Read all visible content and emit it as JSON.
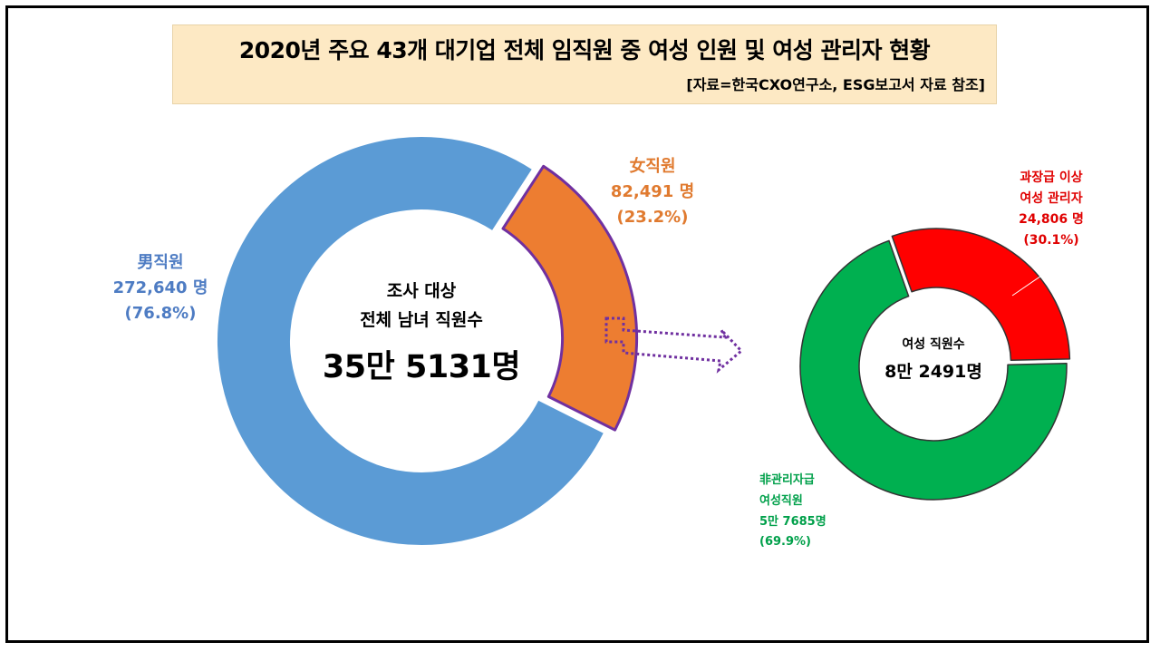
{
  "header": {
    "title": "2020년 주요 43개 대기업 전체 임직원 중 여성 인원 및 여성 관리자 현황",
    "source": "[자료=한국CXO연구소, ESG보고서 자료 참조]"
  },
  "main_donut": {
    "center_line1": "조사 대상",
    "center_line2": "전체 남녀 직원수",
    "center_total": "35만 5131명",
    "male": {
      "name": "男직원",
      "count": "272,640 명",
      "percent": "(76.8%)"
    },
    "female": {
      "name": "女직원",
      "count": "82,491 명",
      "percent": "(23.2%)"
    }
  },
  "sub_donut": {
    "center_line1": "여성 직원수",
    "center_total": "8만 2491명",
    "manager": {
      "line1": "과장급 이상",
      "line2": "여성 관리자",
      "count": "24,806 명",
      "percent": "(30.1%)"
    },
    "non_manager": {
      "line1": "非관리자급",
      "line2": "여성직원",
      "count": "5만 7685명",
      "percent": "(69.9%)"
    }
  },
  "colors": {
    "male": "#5b9bd5",
    "female": "#ed7d31",
    "female_outline": "#7030a0",
    "manager": "#ff0000",
    "non_manager": "#00b050",
    "arrow": "#7030a0"
  },
  "chart_data": [
    {
      "type": "pie",
      "categories": [
        "男직원",
        "女직원"
      ],
      "values": [
        272640,
        82491
      ],
      "percents": [
        76.8,
        23.2
      ]
    },
    {
      "type": "pie",
      "categories": [
        "과장급 이상 여성 관리자",
        "非관리자급 여성직원"
      ],
      "values": [
        24806,
        57685
      ],
      "percents": [
        30.1,
        69.9
      ]
    }
  ]
}
